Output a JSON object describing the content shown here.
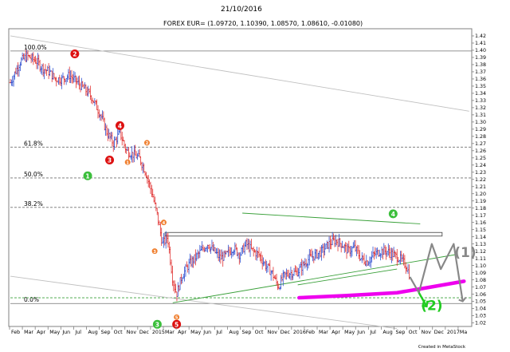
{
  "header": {
    "date": "21/10/2016",
    "quote": "FOREX EUR= (1.09720, 1.10390, 1.08570, 1.08610, -0.01080)"
  },
  "footer": {
    "credit": "Created in MetaStock"
  },
  "chart_data": {
    "type": "ohlc-bar",
    "y_axis": {
      "side": "right",
      "ylim": [
        1.015,
        1.43
      ],
      "ticks": [
        1.42,
        1.41,
        1.4,
        1.39,
        1.38,
        1.37,
        1.36,
        1.35,
        1.34,
        1.33,
        1.32,
        1.31,
        1.3,
        1.29,
        1.28,
        1.27,
        1.26,
        1.25,
        1.24,
        1.23,
        1.22,
        1.21,
        1.2,
        1.19,
        1.18,
        1.17,
        1.16,
        1.15,
        1.14,
        1.13,
        1.12,
        1.11,
        1.1,
        1.09,
        1.08,
        1.07,
        1.06,
        1.05,
        1.04,
        1.03,
        1.02
      ]
    },
    "x_axis": {
      "labels": [
        "Feb",
        "Mar",
        "Apr",
        "May",
        "Jun",
        "Jul",
        "Aug",
        "Sep",
        "Oct",
        "Nov",
        "Dec",
        "2015",
        "Mar",
        "Apr",
        "May",
        "Jun",
        "Jul",
        "Aug",
        "Sep",
        "Oct",
        "Nov",
        "Dec",
        "2016",
        "Feb",
        "Mar",
        "Apr",
        "May",
        "Jun",
        "Jul",
        "Aug",
        "Sep",
        "Oct",
        "Nov",
        "Dec",
        "2017",
        "Ma"
      ]
    },
    "fib_levels": [
      {
        "label": "100.0%",
        "price": 1.399
      },
      {
        "label": "61.8%",
        "price": 1.265
      },
      {
        "label": "50.0%",
        "price": 1.222
      },
      {
        "label": "38.2%",
        "price": 1.181
      },
      {
        "label": "0.0%",
        "price": 1.047
      }
    ],
    "support_dashed": {
      "price": 1.055
    },
    "price_path": [
      {
        "t": 0,
        "p": 1.355
      },
      {
        "t": 0.8,
        "p": 1.385
      },
      {
        "t": 1.3,
        "p": 1.392
      },
      {
        "t": 2,
        "p": 1.385
      },
      {
        "t": 2.5,
        "p": 1.375
      },
      {
        "t": 3,
        "p": 1.37
      },
      {
        "t": 3.5,
        "p": 1.36
      },
      {
        "t": 4,
        "p": 1.36
      },
      {
        "t": 4.6,
        "p": 1.365
      },
      {
        "t": 5.2,
        "p": 1.355
      },
      {
        "t": 5.8,
        "p": 1.345
      },
      {
        "t": 6.3,
        "p": 1.335
      },
      {
        "t": 7,
        "p": 1.31
      },
      {
        "t": 7.5,
        "p": 1.285
      },
      {
        "t": 8,
        "p": 1.27
      },
      {
        "t": 8.5,
        "p": 1.285
      },
      {
        "t": 9,
        "p": 1.26
      },
      {
        "t": 9.5,
        "p": 1.255
      },
      {
        "t": 10,
        "p": 1.25
      },
      {
        "t": 10.5,
        "p": 1.23
      },
      {
        "t": 11,
        "p": 1.2
      },
      {
        "t": 11.4,
        "p": 1.17
      },
      {
        "t": 11.8,
        "p": 1.13
      },
      {
        "t": 12.2,
        "p": 1.14
      },
      {
        "t": 12.6,
        "p": 1.08
      },
      {
        "t": 12.9,
        "p": 1.06
      },
      {
        "t": 13.3,
        "p": 1.085
      },
      {
        "t": 13.8,
        "p": 1.1
      },
      {
        "t": 14.3,
        "p": 1.11
      },
      {
        "t": 14.8,
        "p": 1.12
      },
      {
        "t": 15.3,
        "p": 1.13
      },
      {
        "t": 15.8,
        "p": 1.12
      },
      {
        "t": 16.3,
        "p": 1.11
      },
      {
        "t": 16.8,
        "p": 1.115
      },
      {
        "t": 17.3,
        "p": 1.125
      },
      {
        "t": 17.8,
        "p": 1.115
      },
      {
        "t": 18.3,
        "p": 1.13
      },
      {
        "t": 18.8,
        "p": 1.12
      },
      {
        "t": 19.3,
        "p": 1.115
      },
      {
        "t": 19.8,
        "p": 1.1
      },
      {
        "t": 20.3,
        "p": 1.09
      },
      {
        "t": 20.8,
        "p": 1.07
      },
      {
        "t": 21.2,
        "p": 1.085
      },
      {
        "t": 21.7,
        "p": 1.09
      },
      {
        "t": 22.2,
        "p": 1.09
      },
      {
        "t": 22.7,
        "p": 1.1
      },
      {
        "t": 23.2,
        "p": 1.11
      },
      {
        "t": 23.7,
        "p": 1.115
      },
      {
        "t": 24.2,
        "p": 1.12
      },
      {
        "t": 24.7,
        "p": 1.13
      },
      {
        "t": 25.2,
        "p": 1.135
      },
      {
        "t": 25.7,
        "p": 1.13
      },
      {
        "t": 26.2,
        "p": 1.12
      },
      {
        "t": 26.7,
        "p": 1.125
      },
      {
        "t": 27.2,
        "p": 1.11
      },
      {
        "t": 27.7,
        "p": 1.105
      },
      {
        "t": 28.2,
        "p": 1.115
      },
      {
        "t": 28.7,
        "p": 1.12
      },
      {
        "t": 29.2,
        "p": 1.12
      },
      {
        "t": 29.7,
        "p": 1.115
      },
      {
        "t": 30.2,
        "p": 1.11
      },
      {
        "t": 30.7,
        "p": 1.1
      },
      {
        "t": 31.0,
        "p": 1.086
      }
    ],
    "trendlines": [
      {
        "color": "#c0c0c0",
        "from": {
          "t": 0,
          "p": 1.42
        },
        "to": {
          "t": 35.6,
          "p": 1.315
        }
      },
      {
        "color": "#c0c0c0",
        "from": {
          "t": 0,
          "p": 1.085
        },
        "to": {
          "t": 30,
          "p": 1.012
        }
      },
      {
        "color": "#3aa03a",
        "from": {
          "t": 18.0,
          "p": 1.173
        },
        "to": {
          "t": 31.8,
          "p": 1.158
        }
      },
      {
        "color": "#3aa03a",
        "from": {
          "t": 12.6,
          "p": 1.048
        },
        "to": {
          "t": 34.5,
          "p": 1.115
        }
      },
      {
        "color": "#3aa03a",
        "from": {
          "t": 22.3,
          "p": 1.073
        },
        "to": {
          "t": 30,
          "p": 1.095
        }
      }
    ],
    "rectangle": {
      "t_start": 12,
      "t_end": 33.5,
      "p_top": 1.146,
      "p_bottom": 1.141
    },
    "projection": {
      "color": "#ee00ee",
      "points": [
        {
          "t": 22.4,
          "p": 1.055
        },
        {
          "t": 26,
          "p": 1.058
        },
        {
          "t": 30,
          "p": 1.062
        },
        {
          "t": 32,
          "p": 1.068
        },
        {
          "t": 35.2,
          "p": 1.078
        }
      ]
    },
    "drawn_zigzag": {
      "color": "#888888",
      "points": [
        {
          "t": 31.0,
          "p": 1.084
        },
        {
          "t": 31.7,
          "p": 1.062
        },
        {
          "t": 32.7,
          "p": 1.13
        },
        {
          "t": 33.4,
          "p": 1.095
        },
        {
          "t": 34.4,
          "p": 1.13
        },
        {
          "t": 35.1,
          "p": 1.05
        }
      ]
    },
    "markers": [
      {
        "label": "1",
        "color": "#3cbf3c",
        "t": 6.0,
        "p": 1.225
      },
      {
        "label": "2",
        "color": "#dd1111",
        "t": 5.0,
        "p": 1.395
      },
      {
        "label": "3",
        "color": "#dd1111",
        "t": 7.7,
        "p": 1.247
      },
      {
        "label": "4",
        "color": "#dd1111",
        "t": 8.5,
        "p": 1.295
      },
      {
        "label": "4",
        "color": "#3cbf3c",
        "t": 29.7,
        "p": 1.172
      },
      {
        "label": "3",
        "color": "#3cbf3c",
        "t": 11.4,
        "p": 1.018
      },
      {
        "label": "5",
        "color": "#dd1111",
        "t": 12.9,
        "p": 1.018
      }
    ],
    "small_markers": [
      {
        "label": "1",
        "color": "#f08030",
        "t": 9.1,
        "p": 1.244
      },
      {
        "label": "2",
        "color": "#f08030",
        "t": 10.6,
        "p": 1.271
      },
      {
        "label": "4",
        "color": "#f08030",
        "t": 11.9,
        "p": 1.16
      },
      {
        "label": "3",
        "color": "#f08030",
        "t": 11.2,
        "p": 1.12
      },
      {
        "label": "5",
        "color": "#f08030",
        "t": 12.9,
        "p": 1.028
      }
    ],
    "handwritten": [
      {
        "text": "(1)",
        "color": "#888888",
        "t": 35.3,
        "p": 1.112
      },
      {
        "text": "(2)",
        "color": "#22cc22",
        "t": 32.7,
        "p": 1.038
      }
    ]
  }
}
